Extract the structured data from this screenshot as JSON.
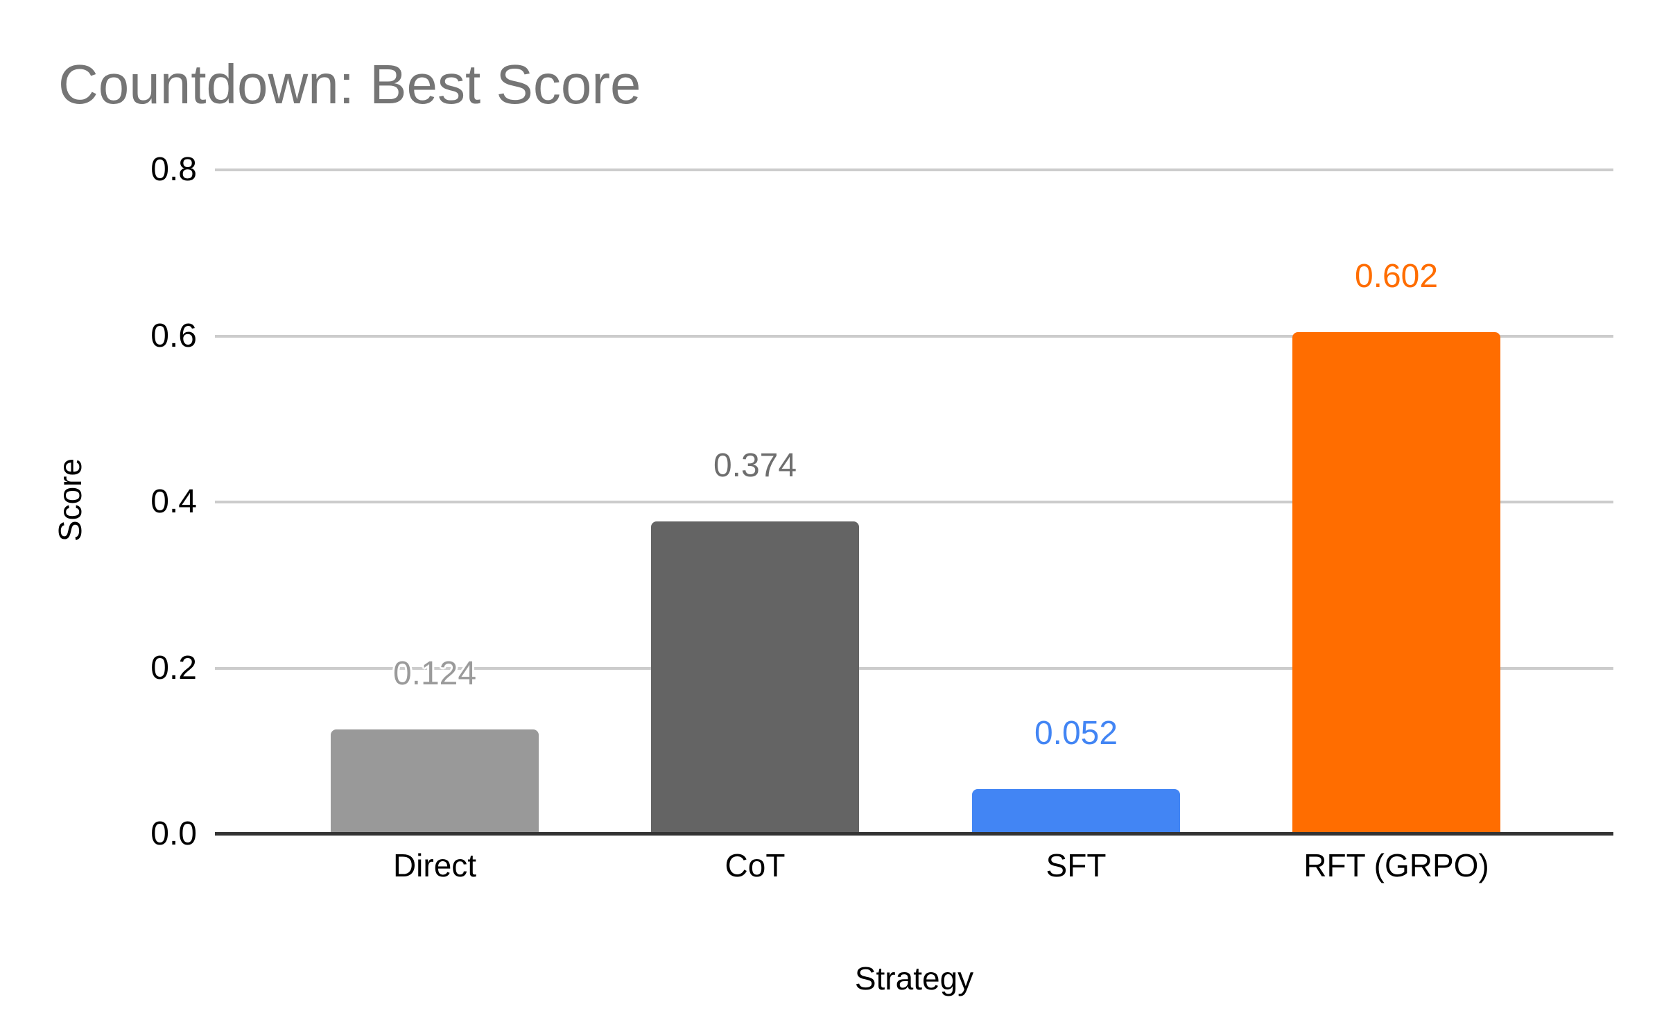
{
  "chart_data": {
    "type": "bar",
    "title": "Countdown: Best Score",
    "xlabel": "Strategy",
    "ylabel": "Score",
    "categories": [
      "Direct",
      "CoT",
      "SFT",
      "RFT (GRPO)"
    ],
    "values": [
      0.124,
      0.374,
      0.052,
      0.602
    ],
    "value_labels": [
      "0.124",
      "0.374",
      "0.052",
      "0.602"
    ],
    "bar_colors": [
      "#999999",
      "#646464",
      "#4285F4",
      "#FF6D00"
    ],
    "value_label_colors": [
      "#9A9A9A",
      "#6E6E6E",
      "#4285F4",
      "#FF6D00"
    ],
    "ylim": [
      0,
      0.8
    ],
    "yticks": [
      0.0,
      0.2,
      0.4,
      0.6,
      0.8
    ],
    "ytick_labels": [
      "0.0",
      "0.2",
      "0.4",
      "0.6",
      "0.8"
    ],
    "grid": true,
    "legend": "none",
    "colors": {
      "title": "#757575",
      "gridline": "#CCCCCC",
      "axis_line": "#333333",
      "tick_label": "#000000",
      "background": "#FFFFFF"
    }
  }
}
